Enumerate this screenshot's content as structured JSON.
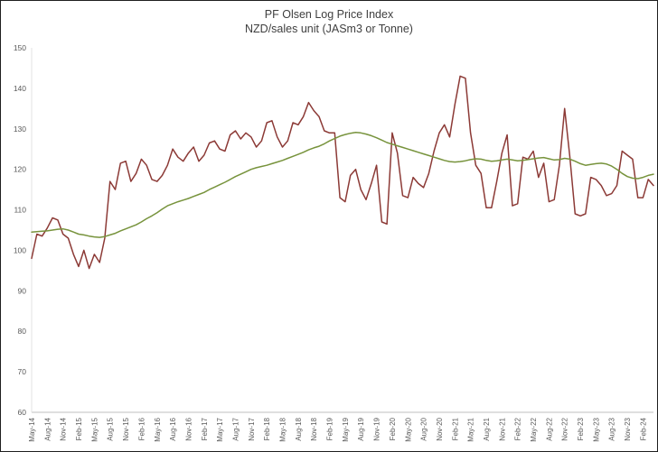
{
  "chart_data": {
    "type": "line",
    "title": "PF Olsen Log Price Index",
    "subtitle": "NZD/sales unit (JASm3 or Tonne)",
    "xlabel": "",
    "ylabel": "",
    "ylim": [
      60,
      150
    ],
    "ytick_step": 10,
    "xtick_step": 3,
    "grid": false,
    "legend": "none",
    "axis_color": "#bfbfbf",
    "label_color": "#595959",
    "categories": [
      "May-14",
      "Jun-14",
      "Jul-14",
      "Aug-14",
      "Sep-14",
      "Oct-14",
      "Nov-14",
      "Dec-14",
      "Jan-15",
      "Feb-15",
      "Mar-15",
      "Apr-15",
      "May-15",
      "Jun-15",
      "Jul-15",
      "Aug-15",
      "Sep-15",
      "Oct-15",
      "Nov-15",
      "Dec-15",
      "Jan-16",
      "Feb-16",
      "Mar-16",
      "Apr-16",
      "May-16",
      "Jun-16",
      "Jul-16",
      "Aug-16",
      "Sep-16",
      "Oct-16",
      "Nov-16",
      "Dec-16",
      "Jan-17",
      "Feb-17",
      "Mar-17",
      "Apr-17",
      "May-17",
      "Jun-17",
      "Jul-17",
      "Aug-17",
      "Sep-17",
      "Oct-17",
      "Nov-17",
      "Dec-17",
      "Jan-18",
      "Feb-18",
      "Mar-18",
      "Apr-18",
      "May-18",
      "Jun-18",
      "Jul-18",
      "Aug-18",
      "Sep-18",
      "Oct-18",
      "Nov-18",
      "Dec-18",
      "Jan-19",
      "Feb-19",
      "Mar-19",
      "Apr-19",
      "May-19",
      "Jun-19",
      "Jul-19",
      "Aug-19",
      "Sep-19",
      "Oct-19",
      "Nov-19",
      "Dec-19",
      "Jan-20",
      "Feb-20",
      "Mar-20",
      "Apr-20",
      "May-20",
      "Jun-20",
      "Jul-20",
      "Aug-20",
      "Sep-20",
      "Oct-20",
      "Nov-20",
      "Dec-20",
      "Jan-21",
      "Feb-21",
      "Mar-21",
      "Apr-21",
      "May-21",
      "Jun-21",
      "Jul-21",
      "Aug-21",
      "Sep-21",
      "Oct-21",
      "Nov-21",
      "Dec-21",
      "Jan-22",
      "Feb-22",
      "Mar-22",
      "Apr-22",
      "May-22",
      "Jun-22",
      "Jul-22",
      "Aug-22",
      "Sep-22",
      "Oct-22",
      "Nov-22",
      "Dec-22",
      "Jan-23",
      "Feb-23",
      "Mar-23",
      "Apr-23",
      "May-23",
      "Jun-23",
      "Jul-23",
      "Aug-23",
      "Sep-23",
      "Oct-23",
      "Nov-23",
      "Dec-23",
      "Jan-24",
      "Feb-24",
      "Mar-24",
      "Apr-24"
    ],
    "series": [
      {
        "name": "index-line",
        "color": "#8c3a36",
        "values": [
          98,
          104,
          103.5,
          105.5,
          108,
          107.5,
          104,
          103,
          99,
          96,
          100,
          95.5,
          99,
          97,
          103,
          117,
          115,
          121.5,
          122,
          117,
          119,
          122.5,
          121,
          117.5,
          117,
          118.5,
          121,
          125,
          123,
          122,
          124,
          125.5,
          122,
          123.5,
          126.5,
          127,
          125,
          124.5,
          128.5,
          129.5,
          127.5,
          129,
          128,
          125.5,
          127,
          131.5,
          132,
          128,
          125.5,
          127,
          131.5,
          131,
          133,
          136.5,
          134.5,
          133,
          129.5,
          129,
          129,
          113,
          112,
          118.5,
          120,
          115,
          112.5,
          116.5,
          121,
          107,
          106.5,
          129,
          124,
          113.5,
          113,
          118,
          116.5,
          115.5,
          119,
          124.5,
          129,
          131,
          128,
          136,
          143,
          142.5,
          129,
          121,
          119,
          110.5,
          110.5,
          117,
          124,
          128.5,
          111,
          111.5,
          123,
          122.5,
          124.5,
          118,
          121.5,
          112,
          112.5,
          121,
          135,
          123,
          109,
          108.5,
          109,
          118,
          117.5,
          116,
          113.5,
          114,
          116,
          124.5,
          123.5,
          122.5,
          113,
          113,
          117.5,
          116
        ]
      },
      {
        "name": "trend-line",
        "color": "#77933c",
        "values": [
          104.5,
          104.6,
          104.7,
          104.8,
          105,
          105.2,
          105.3,
          105,
          104.5,
          104,
          103.8,
          103.5,
          103.3,
          103.2,
          103.4,
          103.8,
          104.2,
          104.8,
          105.3,
          105.8,
          106.3,
          107,
          107.8,
          108.5,
          109.3,
          110.2,
          111,
          111.5,
          112,
          112.4,
          112.8,
          113.3,
          113.8,
          114.3,
          115,
          115.6,
          116.2,
          116.8,
          117.5,
          118.2,
          118.8,
          119.4,
          120,
          120.4,
          120.7,
          121,
          121.4,
          121.8,
          122.2,
          122.7,
          123.2,
          123.7,
          124.2,
          124.8,
          125.3,
          125.7,
          126.3,
          127,
          127.6,
          128.2,
          128.6,
          128.9,
          129.1,
          129,
          128.7,
          128.3,
          127.8,
          127.2,
          126.6,
          126.2,
          125.8,
          125.4,
          125,
          124.6,
          124.2,
          123.8,
          123.4,
          123,
          122.6,
          122.2,
          121.9,
          121.8,
          121.9,
          122.1,
          122.4,
          122.6,
          122.5,
          122.2,
          122,
          122.1,
          122.3,
          122.5,
          122.3,
          122.1,
          122.2,
          122.4,
          122.6,
          122.8,
          122.9,
          122.6,
          122.3,
          122.4,
          122.7,
          122.5,
          122,
          121.4,
          121,
          121.2,
          121.4,
          121.5,
          121.3,
          120.8,
          120,
          119,
          118.2,
          117.8,
          117.7,
          118,
          118.5,
          118.8
        ]
      }
    ]
  }
}
